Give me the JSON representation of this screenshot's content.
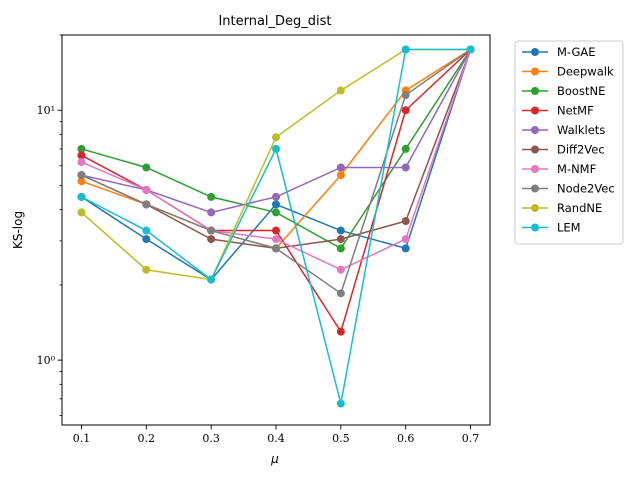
{
  "chart_data": {
    "type": "line",
    "title": "Internal_Deg_dist",
    "xlabel": "μ",
    "ylabel": "KS-log",
    "x": [
      0.1,
      0.2,
      0.3,
      0.4,
      0.5,
      0.6,
      0.7
    ],
    "x_tick_labels": [
      "0.1",
      "0.2",
      "0.3",
      "0.4",
      "0.5",
      "0.6",
      "0.7"
    ],
    "y_scale": "log",
    "ylim": [
      0.55,
      20
    ],
    "y_major_ticks": [
      1,
      10
    ],
    "y_tick_labels": [
      "10⁰",
      "10¹"
    ],
    "grid": false,
    "legend_position": "outside-right",
    "series": [
      {
        "name": "M-GAE",
        "color": "#1f77b4",
        "values": [
          4.5,
          3.05,
          2.1,
          4.2,
          3.3,
          2.8,
          17.5
        ]
      },
      {
        "name": "Deepwalk",
        "color": "#ff7f0e",
        "values": [
          5.2,
          4.2,
          3.3,
          2.8,
          5.5,
          12.0,
          17.5
        ]
      },
      {
        "name": "BoostNE",
        "color": "#2ca02c",
        "values": [
          7.0,
          5.9,
          4.5,
          3.9,
          2.8,
          7.0,
          17.5
        ]
      },
      {
        "name": "NetMF",
        "color": "#d62728",
        "values": [
          6.6,
          4.8,
          3.3,
          3.3,
          1.3,
          10.0,
          17.5
        ]
      },
      {
        "name": "Walklets",
        "color": "#9467bd",
        "values": [
          5.5,
          4.8,
          3.9,
          4.5,
          5.9,
          5.9,
          17.5
        ]
      },
      {
        "name": "Diff2Vec",
        "color": "#8c564b",
        "values": [
          5.5,
          4.2,
          3.05,
          2.8,
          3.05,
          3.6,
          17.5
        ]
      },
      {
        "name": "M-NMF",
        "color": "#e377c2",
        "values": [
          6.2,
          4.8,
          3.3,
          3.05,
          2.3,
          3.05,
          17.5
        ]
      },
      {
        "name": "Node2Vec",
        "color": "#7f7f7f",
        "values": [
          5.5,
          4.2,
          3.3,
          2.8,
          1.85,
          11.5,
          17.5
        ]
      },
      {
        "name": "RandNE",
        "color": "#bcbd22",
        "values": [
          3.9,
          2.3,
          2.1,
          7.8,
          12.0,
          17.5,
          17.5
        ]
      },
      {
        "name": "LEM",
        "color": "#17becf",
        "values": [
          4.5,
          3.3,
          2.1,
          7.0,
          0.67,
          17.5,
          17.5
        ]
      }
    ]
  }
}
